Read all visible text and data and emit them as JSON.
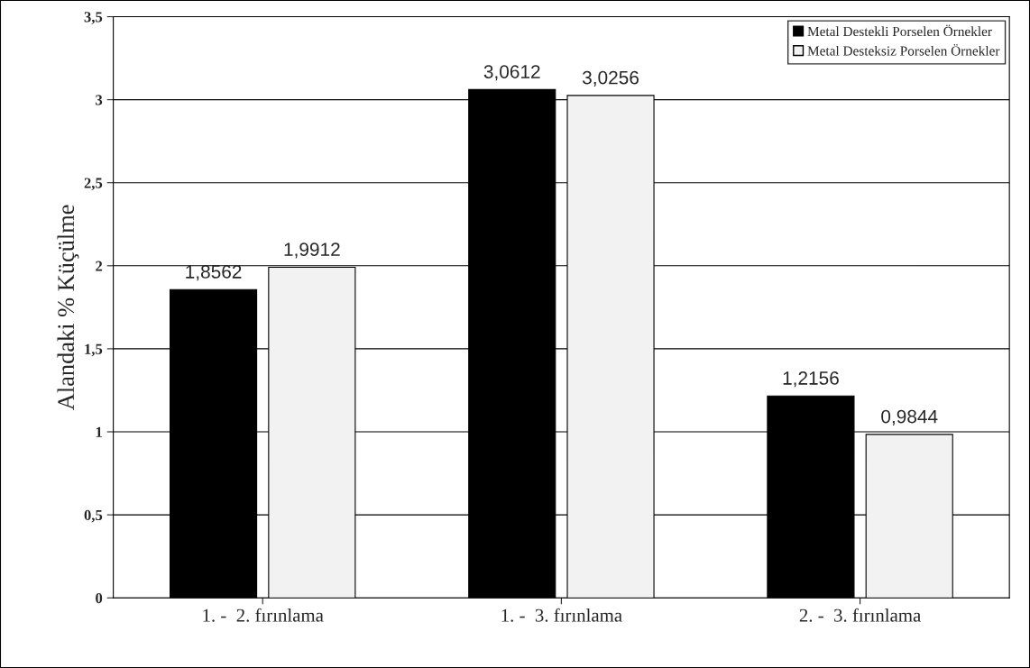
{
  "chart_data": {
    "type": "bar",
    "ylabel": "Alandaki % Küçülme",
    "categories": [
      "1. -  2. fırınlama",
      "1. -  3. fırınlama",
      "2. -  3. fırınlama"
    ],
    "series": [
      {
        "name": "Metal Destekli Porselen Örnekler",
        "color": "#000000",
        "values": [
          1.8562,
          3.0612,
          1.2156
        ],
        "value_labels": [
          "1,8562",
          "3,0612",
          "1,2156"
        ]
      },
      {
        "name": "Metal Desteksiz Porselen Örnekler",
        "color": "#f2f2f2",
        "values": [
          1.9912,
          3.0256,
          0.9844
        ],
        "value_labels": [
          "1,9912",
          "3,0256",
          "0,9844"
        ]
      }
    ],
    "ylim": [
      0,
      3.5
    ],
    "yticks": [
      0,
      {
        "value": 0.5,
        "label": "0,5"
      },
      1,
      {
        "value": 1.5,
        "label": "1,5"
      },
      2,
      {
        "value": 2.5,
        "label": "2,5"
      },
      3,
      {
        "value": 3.5,
        "label": "3,5"
      }
    ],
    "grid": "y",
    "legend": "top right"
  }
}
